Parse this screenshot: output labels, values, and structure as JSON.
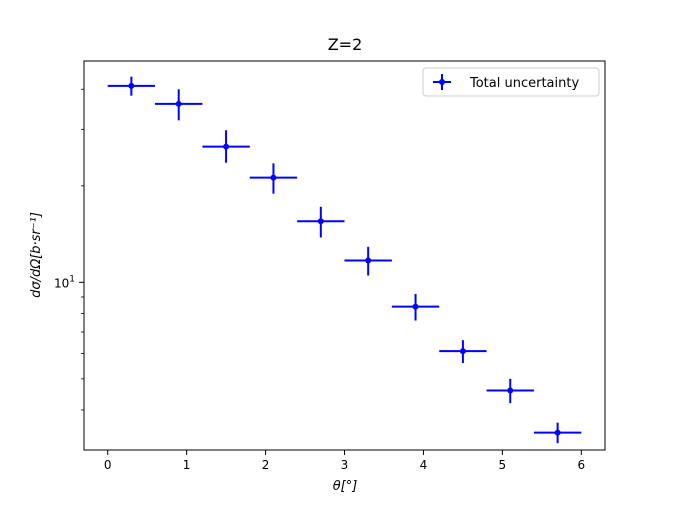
{
  "chart_data": {
    "type": "scatter",
    "title": "Z=2",
    "xlabel": "θ[°]",
    "ylabel": "dσ/dΩ[b·sr⁻¹]",
    "x_ticks": [
      0,
      1,
      2,
      3,
      4,
      5,
      6
    ],
    "y_ticks": [
      {
        "value": 10,
        "label_base": "10",
        "label_exp": "1"
      }
    ],
    "xlim": [
      -0.3,
      6.3
    ],
    "ylim": [
      3.0,
      49.0
    ],
    "y_scale": "log",
    "legend_position": "top-right",
    "series": [
      {
        "name": "Total uncertainty",
        "color": "#0000ff",
        "points": [
          {
            "x": 0.3,
            "xerr": 0.3,
            "y": 41.0,
            "yerr_low": 2.8,
            "yerr_high": 2.8
          },
          {
            "x": 0.9,
            "xerr": 0.3,
            "y": 36.0,
            "yerr_low": 4.0,
            "yerr_high": 4.0
          },
          {
            "x": 1.5,
            "xerr": 0.3,
            "y": 26.5,
            "yerr_low": 2.9,
            "yerr_high": 3.3
          },
          {
            "x": 2.1,
            "xerr": 0.3,
            "y": 21.2,
            "yerr_low": 2.3,
            "yerr_high": 2.3
          },
          {
            "x": 2.7,
            "xerr": 0.3,
            "y": 15.5,
            "yerr_low": 1.7,
            "yerr_high": 1.7
          },
          {
            "x": 3.3,
            "xerr": 0.3,
            "y": 11.7,
            "yerr_low": 1.2,
            "yerr_high": 1.2
          },
          {
            "x": 3.9,
            "xerr": 0.3,
            "y": 8.4,
            "yerr_low": 0.8,
            "yerr_high": 0.8
          },
          {
            "x": 4.5,
            "xerr": 0.3,
            "y": 6.1,
            "yerr_low": 0.5,
            "yerr_high": 0.5
          },
          {
            "x": 5.1,
            "xerr": 0.3,
            "y": 4.6,
            "yerr_low": 0.4,
            "yerr_high": 0.4
          },
          {
            "x": 5.7,
            "xerr": 0.3,
            "y": 3.4,
            "yerr_low": 0.25,
            "yerr_high": 0.25
          }
        ]
      }
    ]
  }
}
